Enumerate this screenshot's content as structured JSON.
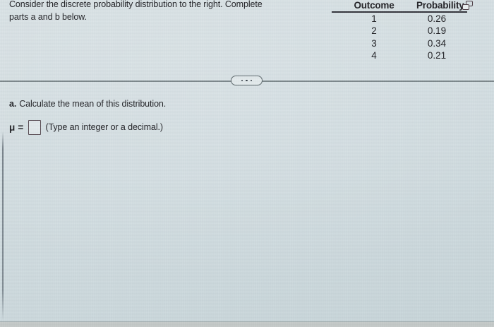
{
  "colors": {
    "background": "#d2dde1",
    "text": "#232327",
    "divider": "#7e898d",
    "table_header_rule": "#33333a",
    "input_border": "#584b52"
  },
  "problem": {
    "statement_line1": "Consider the discrete probability distribution to the right. Complete",
    "statement_line2": "parts a and b below."
  },
  "table": {
    "headers": [
      "Outcome",
      "Probability"
    ],
    "rows": [
      {
        "outcome": "1",
        "probability": "0.26"
      },
      {
        "outcome": "2",
        "probability": "0.19"
      },
      {
        "outcome": "3",
        "probability": "0.34"
      },
      {
        "outcome": "4",
        "probability": "0.21"
      }
    ],
    "icons": {
      "popout": "overlapping-windows-icon"
    }
  },
  "divider": {
    "handle_icon": "ellipsis-icon"
  },
  "part_a": {
    "label": "a.",
    "question": "Calculate the mean of this distribution.",
    "mu_label": "μ =",
    "answer_value": "",
    "hint": "(Type an integer or a decimal.)"
  }
}
